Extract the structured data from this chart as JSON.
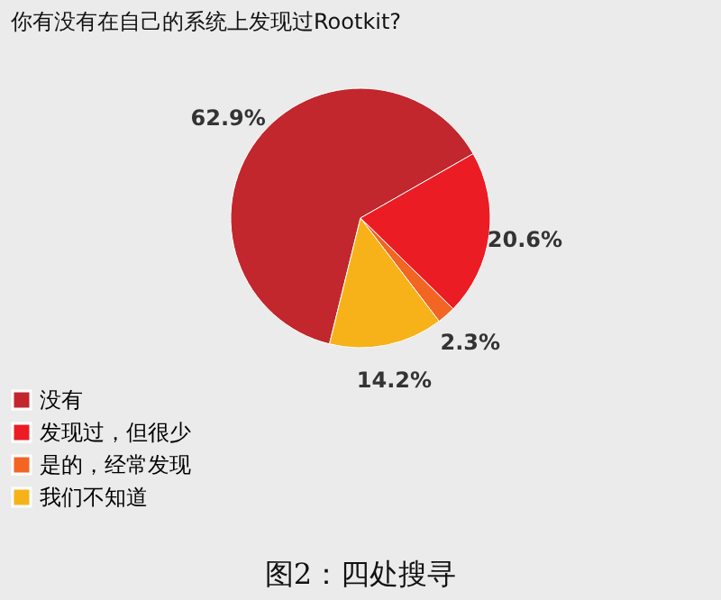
{
  "chart_data": {
    "type": "pie",
    "title": "你有没有在自己的系统上发现过Rootkit?",
    "categories": [
      "没有",
      "发现过，但很少",
      "是的，经常发现",
      "我们不知道"
    ],
    "values": [
      62.9,
      20.6,
      2.3,
      14.2
    ],
    "colors": [
      "#c1272d",
      "#ec1c24",
      "#f26522",
      "#f7b21a"
    ],
    "value_labels": [
      "62.9%",
      "20.6%",
      "2.3%",
      "14.2%"
    ],
    "legend": "bottom left",
    "annotations": [
      "图2：四处搜寻"
    ]
  }
}
